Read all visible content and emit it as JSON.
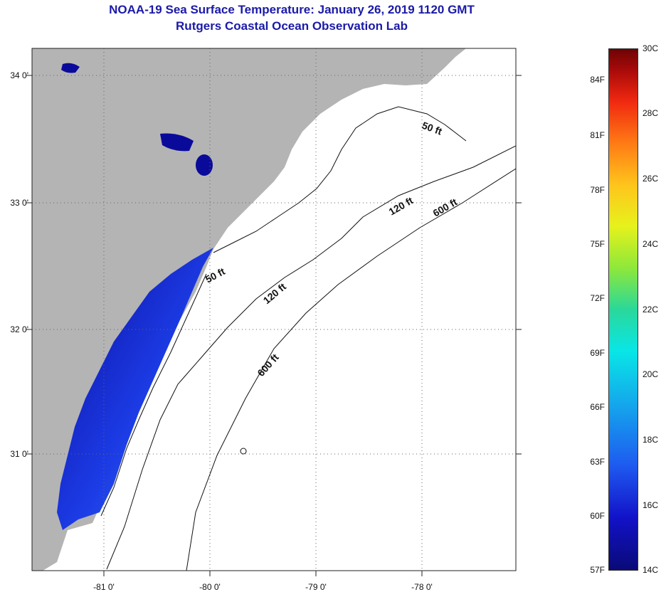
{
  "title": {
    "line1": "NOAA-19 Sea Surface Temperature:  January 26, 2019 1120 GMT",
    "line2": "Rutgers Coastal Ocean Observation Lab"
  },
  "axes": {
    "lat_labels": [
      "34 0'",
      "33 0'",
      "32 0'",
      "31 0'"
    ],
    "lon_labels": [
      "-81 0'",
      "-80 0'",
      "-79 0'",
      "-78 0'"
    ]
  },
  "contour_labels": [
    "50 ft",
    "50 ft",
    "120 ft",
    "120 ft",
    "600 ft",
    "600 ft"
  ],
  "colorbar": {
    "fahrenheit": [
      "84F",
      "81F",
      "78F",
      "75F",
      "72F",
      "69F",
      "66F",
      "63F",
      "60F",
      "57F"
    ],
    "celsius": [
      "30C",
      "28C",
      "26C",
      "24C",
      "22C",
      "20C",
      "18C",
      "16C",
      "14C"
    ]
  },
  "colors": {
    "land": "#b4b4b4",
    "title": "#1a1aa8",
    "sst_cold": "#0a0a9a",
    "sst_mid": "#2a58f0"
  }
}
